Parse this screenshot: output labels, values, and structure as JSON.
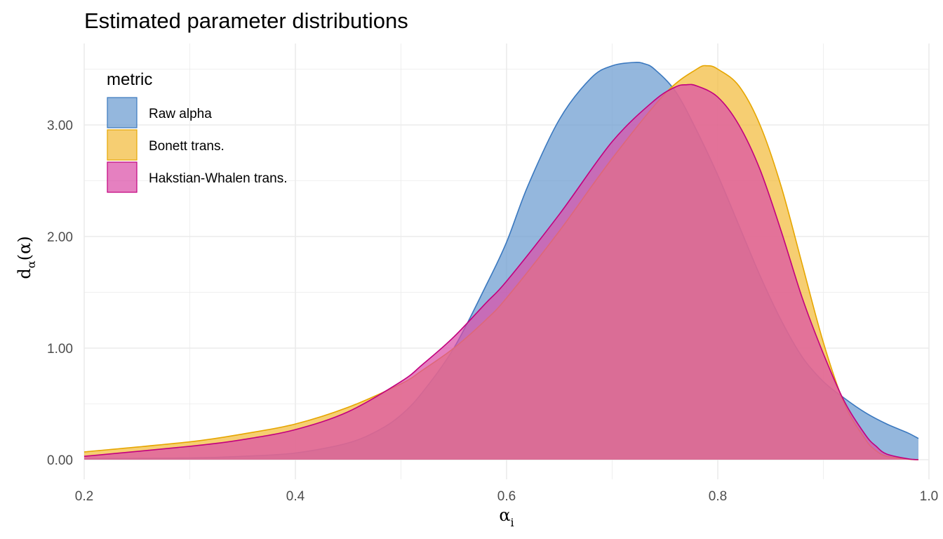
{
  "chart_data": {
    "type": "area",
    "title": "Estimated parameter distributions",
    "xlabel": {
      "base": "α",
      "sub": "i"
    },
    "ylabel": {
      "base": "d",
      "sub": "α",
      "arg": "(α)"
    },
    "xlim": [
      0.2,
      1.0
    ],
    "ylim": [
      0,
      3.6
    ],
    "x_ticks": [
      0.2,
      0.4,
      0.6,
      0.8,
      1.0
    ],
    "x_tick_labels": [
      "0.2",
      "0.4",
      "0.6",
      "0.8",
      "1.0"
    ],
    "y_ticks": [
      0,
      1,
      2,
      3
    ],
    "y_tick_labels": [
      "0.00",
      "1.00",
      "2.00",
      "3.00"
    ],
    "grid": true,
    "legend": {
      "title": "metric",
      "position": "top-left"
    },
    "series": [
      {
        "name": "Raw alpha",
        "fill": "#6b9bd0",
        "line": "#3a78bf",
        "x": [
          0.2,
          0.3,
          0.35,
          0.4,
          0.45,
          0.48,
          0.5,
          0.52,
          0.55,
          0.58,
          0.6,
          0.62,
          0.65,
          0.68,
          0.7,
          0.72,
          0.73,
          0.74,
          0.76,
          0.78,
          0.8,
          0.82,
          0.84,
          0.86,
          0.88,
          0.9,
          0.92,
          0.94,
          0.96,
          0.98,
          0.99
        ],
        "y": [
          0.01,
          0.015,
          0.03,
          0.06,
          0.15,
          0.27,
          0.4,
          0.6,
          1.0,
          1.55,
          1.95,
          2.45,
          3.05,
          3.42,
          3.53,
          3.56,
          3.55,
          3.5,
          3.3,
          2.95,
          2.55,
          2.1,
          1.65,
          1.25,
          0.92,
          0.7,
          0.55,
          0.42,
          0.32,
          0.24,
          0.19
        ]
      },
      {
        "name": "Bonett trans.",
        "fill": "#f2bb3c",
        "line": "#e6a600",
        "x": [
          0.2,
          0.3,
          0.35,
          0.4,
          0.45,
          0.5,
          0.52,
          0.55,
          0.58,
          0.6,
          0.65,
          0.7,
          0.75,
          0.78,
          0.79,
          0.8,
          0.82,
          0.84,
          0.86,
          0.88,
          0.9,
          0.92,
          0.94,
          0.95,
          0.96,
          0.98,
          0.99
        ],
        "y": [
          0.07,
          0.16,
          0.23,
          0.32,
          0.47,
          0.68,
          0.8,
          1.0,
          1.25,
          1.45,
          2.05,
          2.7,
          3.28,
          3.5,
          3.53,
          3.5,
          3.35,
          3.0,
          2.45,
          1.75,
          1.05,
          0.5,
          0.18,
          0.08,
          0.03,
          0.005,
          0.0
        ]
      },
      {
        "name": "Hakstian-Whalen trans.",
        "fill": "#db4fa8",
        "line": "#c2007e",
        "x": [
          0.2,
          0.3,
          0.35,
          0.4,
          0.45,
          0.5,
          0.52,
          0.55,
          0.58,
          0.6,
          0.65,
          0.7,
          0.74,
          0.76,
          0.77,
          0.78,
          0.8,
          0.82,
          0.84,
          0.86,
          0.88,
          0.9,
          0.92,
          0.94,
          0.95,
          0.96,
          0.98,
          0.99
        ],
        "y": [
          0.03,
          0.12,
          0.18,
          0.27,
          0.43,
          0.7,
          0.85,
          1.1,
          1.4,
          1.6,
          2.2,
          2.85,
          3.22,
          3.34,
          3.36,
          3.35,
          3.25,
          3.0,
          2.6,
          2.05,
          1.45,
          0.95,
          0.52,
          0.22,
          0.12,
          0.05,
          0.008,
          0.0
        ]
      }
    ]
  }
}
